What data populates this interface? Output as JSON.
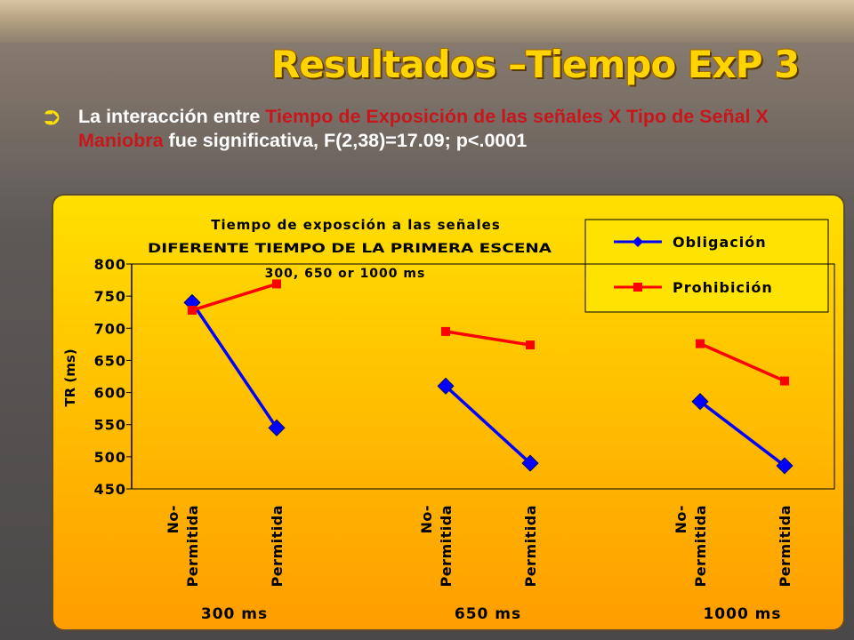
{
  "slide": {
    "title": "Resultados –Tiempo ExP 3",
    "bullet": {
      "icon": "curved-arrow-bullet-icon",
      "text_before": "La interacción entre ",
      "highlight": "Tiempo de Exposición de las señales X Tipo de Señal X Maniobra",
      "text_after": " fue significativa, F(2,38)=17.09; p<.0001"
    }
  },
  "colors": {
    "obligacion": "#0000ff",
    "prohibicion": "#ff0000",
    "title": "#ffd400",
    "highlight": "#c8161d"
  },
  "chart_data": {
    "type": "line",
    "title": "Tiempo de exposción a las señales",
    "subtitle": "DIFERENTE TIEMPO DE LA PRIMERA ESCENA",
    "annotation": "300, 650 or 1000 ms",
    "ylabel": "TR (ms)",
    "ylim": [
      450,
      800
    ],
    "yticks": [
      800,
      750,
      700,
      650,
      600,
      550,
      500,
      450
    ],
    "grid": false,
    "legend_position": "top-right",
    "groups": [
      "300 ms",
      "650 ms",
      "1000 ms"
    ],
    "categories": [
      "No- Permitida",
      "Permitida"
    ],
    "category_labels": [
      [
        "No-",
        "Permitida"
      ],
      [
        "Permitida"
      ]
    ],
    "series": [
      {
        "name": "Obligación",
        "marker": "diamond",
        "values": [
          [
            740,
            545
          ],
          [
            610,
            490
          ],
          [
            586,
            486
          ]
        ]
      },
      {
        "name": "Prohibición",
        "marker": "square",
        "values": [
          [
            728,
            769
          ],
          [
            695,
            674
          ],
          [
            676,
            618
          ]
        ]
      }
    ]
  }
}
